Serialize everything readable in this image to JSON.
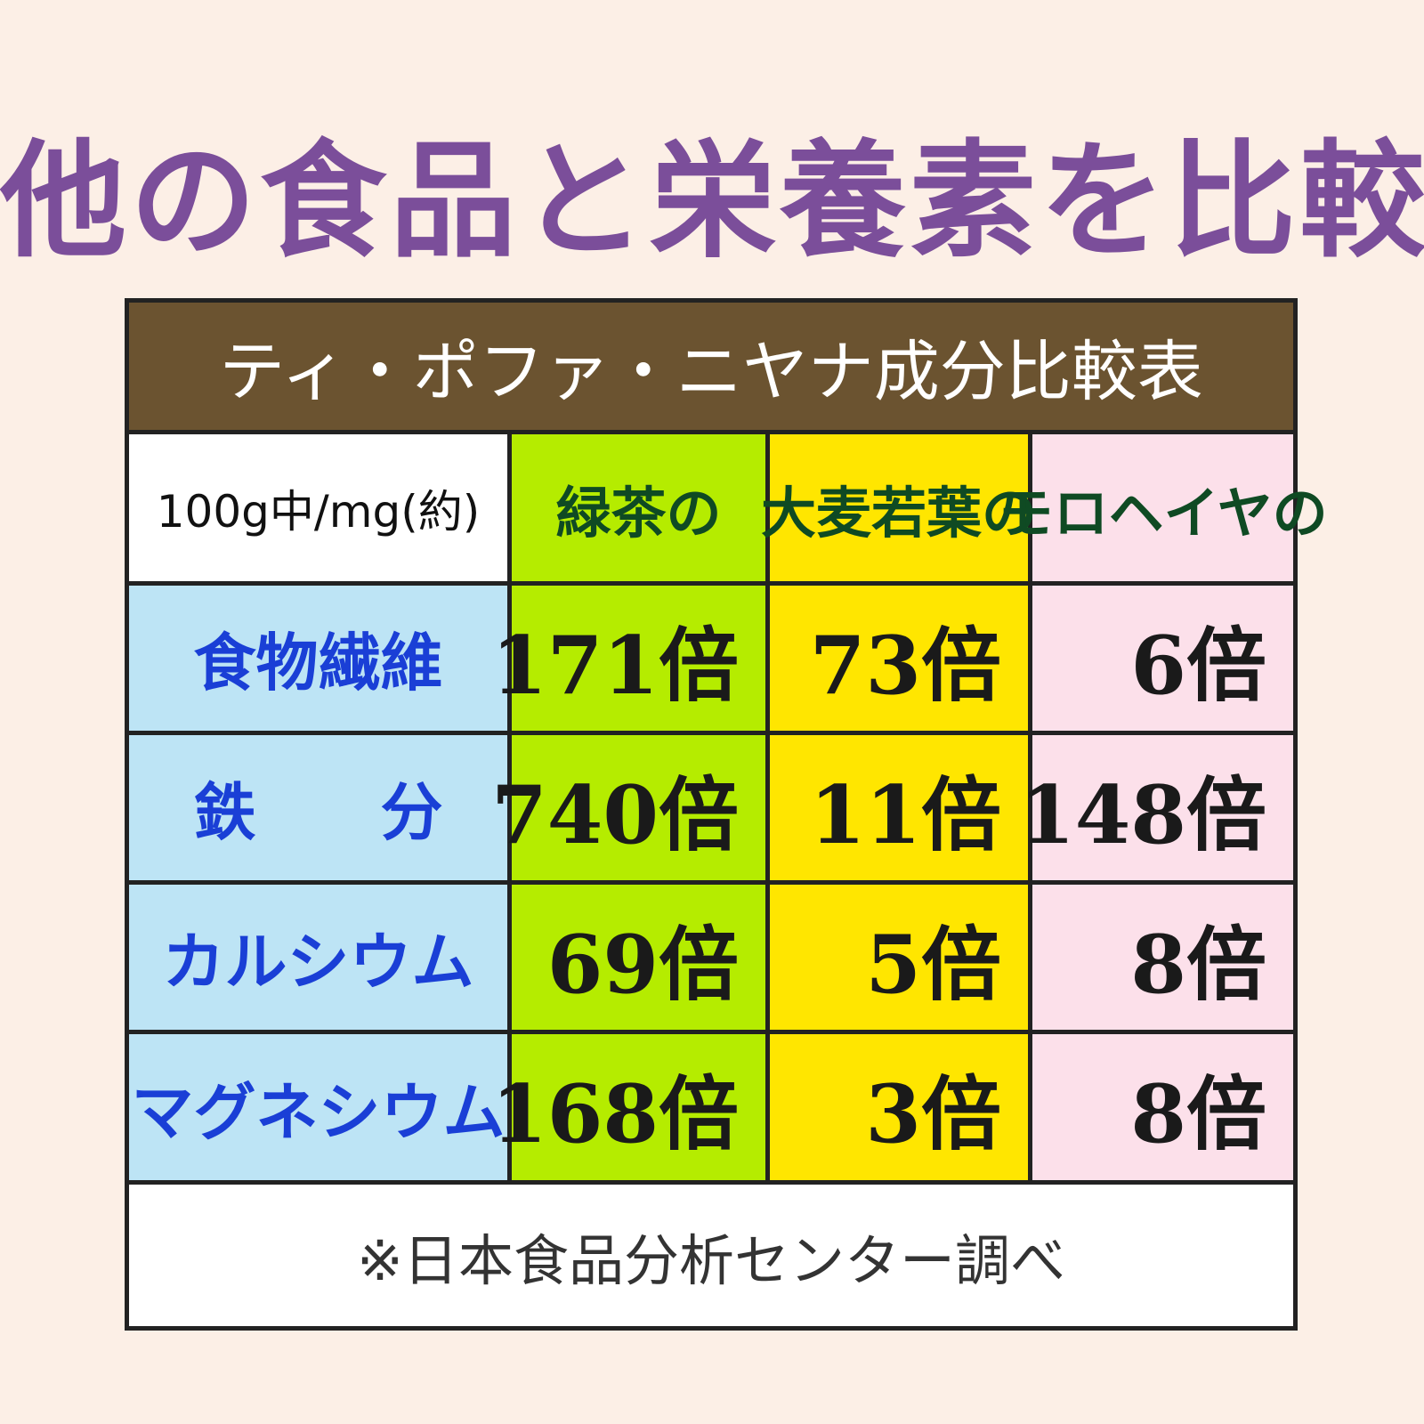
{
  "title": "他の食品と栄養素を比較",
  "table": {
    "caption": "ティ・ポファ・ニヤナ成分比較表",
    "header": [
      "100g中/mg(約)",
      "緑茶の",
      "大麦若葉の",
      "モロヘイヤの"
    ],
    "rows": [
      [
        "食物繊維",
        "171倍",
        "73倍",
        "6倍"
      ],
      [
        "鉄　　分",
        "740倍",
        "11倍",
        "148倍"
      ],
      [
        "カルシウム",
        "69倍",
        "5倍",
        "8倍"
      ],
      [
        "マグネシウム",
        "168倍",
        "3倍",
        "8倍"
      ]
    ]
  },
  "footnote": "※日本食品分析センター調べ"
}
